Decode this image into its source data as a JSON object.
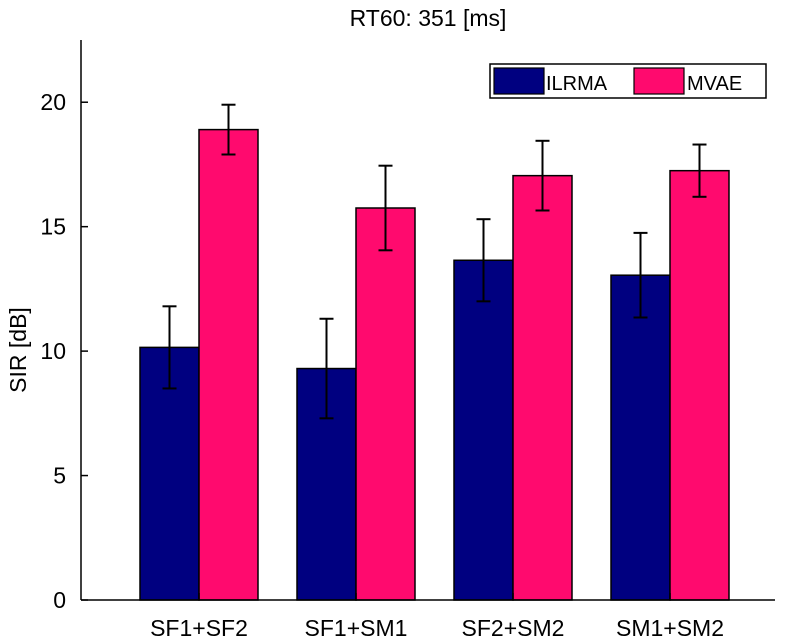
{
  "chart_data": {
    "type": "bar",
    "title": "RT60: 351 [ms]",
    "xlabel": "",
    "ylabel": "SIR [dB]",
    "ylim": [
      0,
      22.5
    ],
    "yticks": [
      0,
      5,
      10,
      15,
      20
    ],
    "categories": [
      "SF1+SF2",
      "SF1+SM1",
      "SF2+SM2",
      "SM1+SM2"
    ],
    "series": [
      {
        "name": "ILRMA",
        "color": "#000080",
        "values": [
          10.15,
          9.3,
          13.65,
          13.05
        ],
        "errors": [
          1.65,
          2.0,
          1.65,
          1.7
        ]
      },
      {
        "name": "MVAE",
        "color": "#ff0a6e",
        "values": [
          18.9,
          15.75,
          17.05,
          17.25
        ],
        "errors": [
          1.0,
          1.7,
          1.4,
          1.05
        ]
      }
    ],
    "legend": "top-right",
    "grid": false,
    "error_bars": true
  }
}
